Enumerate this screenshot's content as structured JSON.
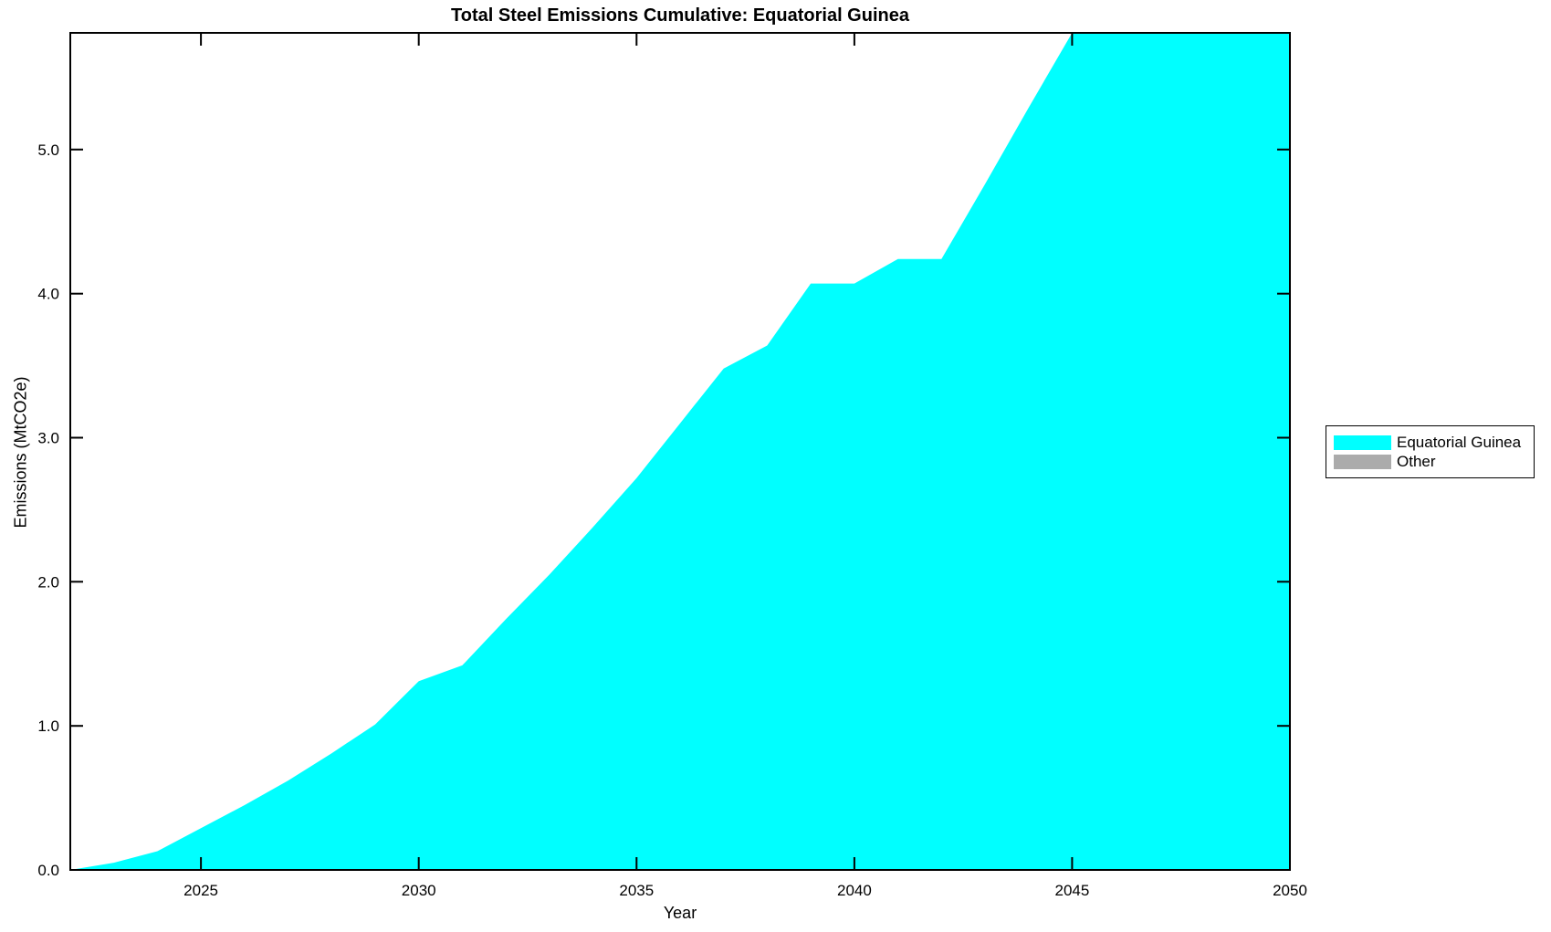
{
  "figure": {
    "background": "#FFFFFF",
    "axis_color": "#000000"
  },
  "chart_data": {
    "type": "area",
    "title": "Total Steel Emissions Cumulative: Equatorial Guinea",
    "xlabel": "Year",
    "ylabel": "Emissions (MtCO2e)",
    "xlim": [
      2022,
      2050
    ],
    "ylim": [
      0,
      5.81
    ],
    "xticks": [
      2025,
      2030,
      2035,
      2040,
      2045,
      2050
    ],
    "xtick_labels": [
      "2025",
      "2030",
      "2035",
      "2040",
      "2045",
      "2050"
    ],
    "yticks": [
      0,
      1,
      2,
      3,
      4,
      5
    ],
    "ytick_labels": [
      "0.0",
      "1.0",
      "2.0",
      "3.0",
      "4.0",
      "5.0"
    ],
    "grid": false,
    "tick_direction": "in",
    "box": true,
    "legend_position": "right-outside",
    "x": [
      2022,
      2023,
      2024,
      2025,
      2026,
      2027,
      2028,
      2029,
      2030,
      2031,
      2032,
      2033,
      2034,
      2035,
      2036,
      2037,
      2038,
      2039,
      2040,
      2041,
      2042,
      2043,
      2044,
      2045
    ],
    "series": [
      {
        "name": "Equatorial Guinea",
        "color": "#00FFFF",
        "values": [
          0.0,
          0.05,
          0.13,
          0.29,
          0.45,
          0.62,
          0.81,
          1.01,
          1.31,
          1.42,
          1.74,
          2.05,
          2.38,
          2.72,
          3.1,
          3.48,
          3.64,
          4.07,
          4.07,
          4.24,
          4.24,
          4.76,
          5.29,
          5.81
        ]
      },
      {
        "name": "Other",
        "color": "#ABABAB",
        "values": []
      }
    ],
    "area_clipped_at_top_from_year": 2045,
    "note": "Area continues above the y-axis maximum from 2045 through 2050 and is clipped at the top of the plot box."
  }
}
